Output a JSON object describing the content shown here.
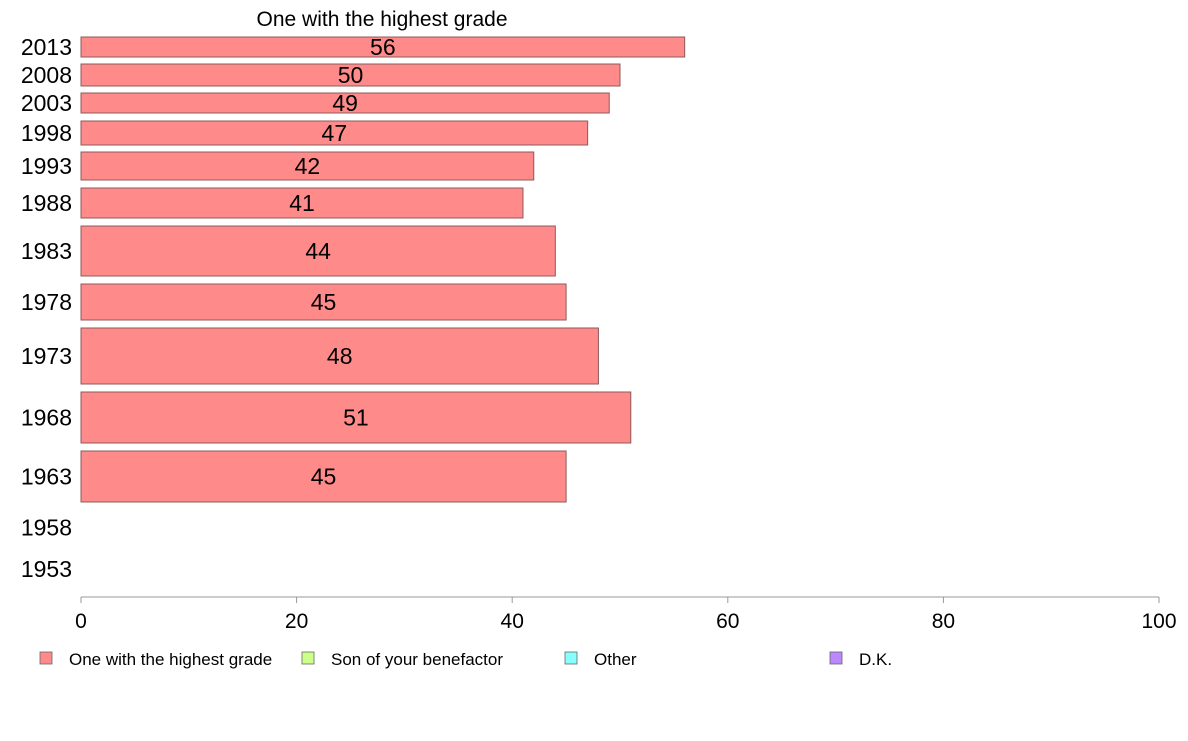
{
  "chart_data": {
    "type": "bar",
    "orientation": "horizontal",
    "title": "One with the highest grade",
    "xlabel": "",
    "ylabel": "",
    "xlim": [
      0,
      100
    ],
    "x_ticks": [
      "0",
      "20",
      "40",
      "60",
      "80",
      "100"
    ],
    "categories": [
      "2013",
      "2008",
      "2003",
      "1998",
      "1993",
      "1988",
      "1983",
      "1978",
      "1973",
      "1968",
      "1963",
      "1958",
      "1953"
    ],
    "series": [
      {
        "name": "One with the highest grade",
        "color": "#ff8a8a",
        "values": [
          56,
          50,
          49,
          47,
          42,
          41,
          44,
          45,
          48,
          51,
          45,
          null,
          null
        ],
        "data_labels": [
          "56",
          "50",
          "49",
          "47",
          "42",
          "41",
          "44",
          "45",
          "48",
          "51",
          "45",
          "",
          ""
        ]
      }
    ],
    "legend": {
      "placement": "bottom",
      "items": [
        {
          "label": "One with the highest grade",
          "color": "#ff8a8a"
        },
        {
          "label": "Son of your benefactor",
          "color": "#ccff88"
        },
        {
          "label": "Other",
          "color": "#88ffff"
        },
        {
          "label": "D.K.",
          "color": "#bb88ff"
        }
      ]
    },
    "grid": false
  }
}
